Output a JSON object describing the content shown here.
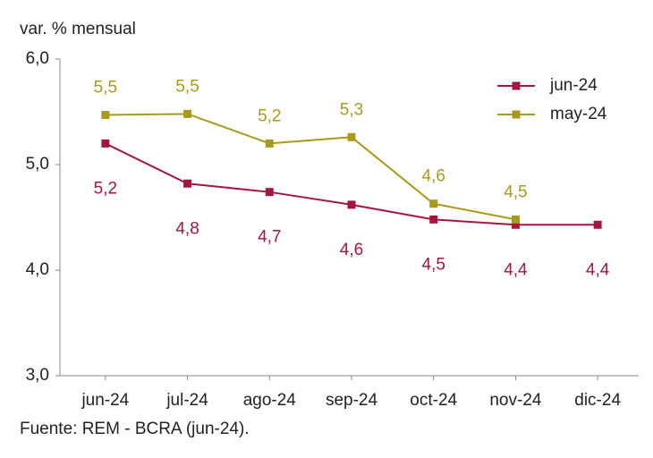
{
  "chart_data": {
    "type": "line",
    "y_label": "var. % mensual",
    "source": "Fuente: REM - BCRA (jun-24).",
    "categories": [
      "jun-24",
      "jul-24",
      "ago-24",
      "sep-24",
      "oct-24",
      "nov-24",
      "dic-24"
    ],
    "series": [
      {
        "name": "jun-24",
        "color": "#a3173f",
        "values": [
          5.2,
          4.82,
          4.74,
          4.62,
          4.48,
          4.43,
          4.43
        ],
        "value_labels": [
          "5,2",
          "4,8",
          "4,7",
          "4,6",
          "4,5",
          "4,4",
          "4,4"
        ]
      },
      {
        "name": "may-24",
        "color": "#a89a1c",
        "values": [
          5.47,
          5.48,
          5.2,
          5.26,
          4.63,
          4.48,
          null
        ],
        "value_labels": [
          "5,5",
          "5,5",
          "5,2",
          "5,3",
          "4,6",
          "4,5",
          null
        ]
      }
    ],
    "ylim": [
      3,
      6
    ],
    "yticks": [
      {
        "value": 3,
        "label": "3,0"
      },
      {
        "value": 4,
        "label": "4,0"
      },
      {
        "value": 5,
        "label": "5,0"
      },
      {
        "value": 6,
        "label": "6,0"
      }
    ],
    "grid": false,
    "legend": "upper right"
  }
}
